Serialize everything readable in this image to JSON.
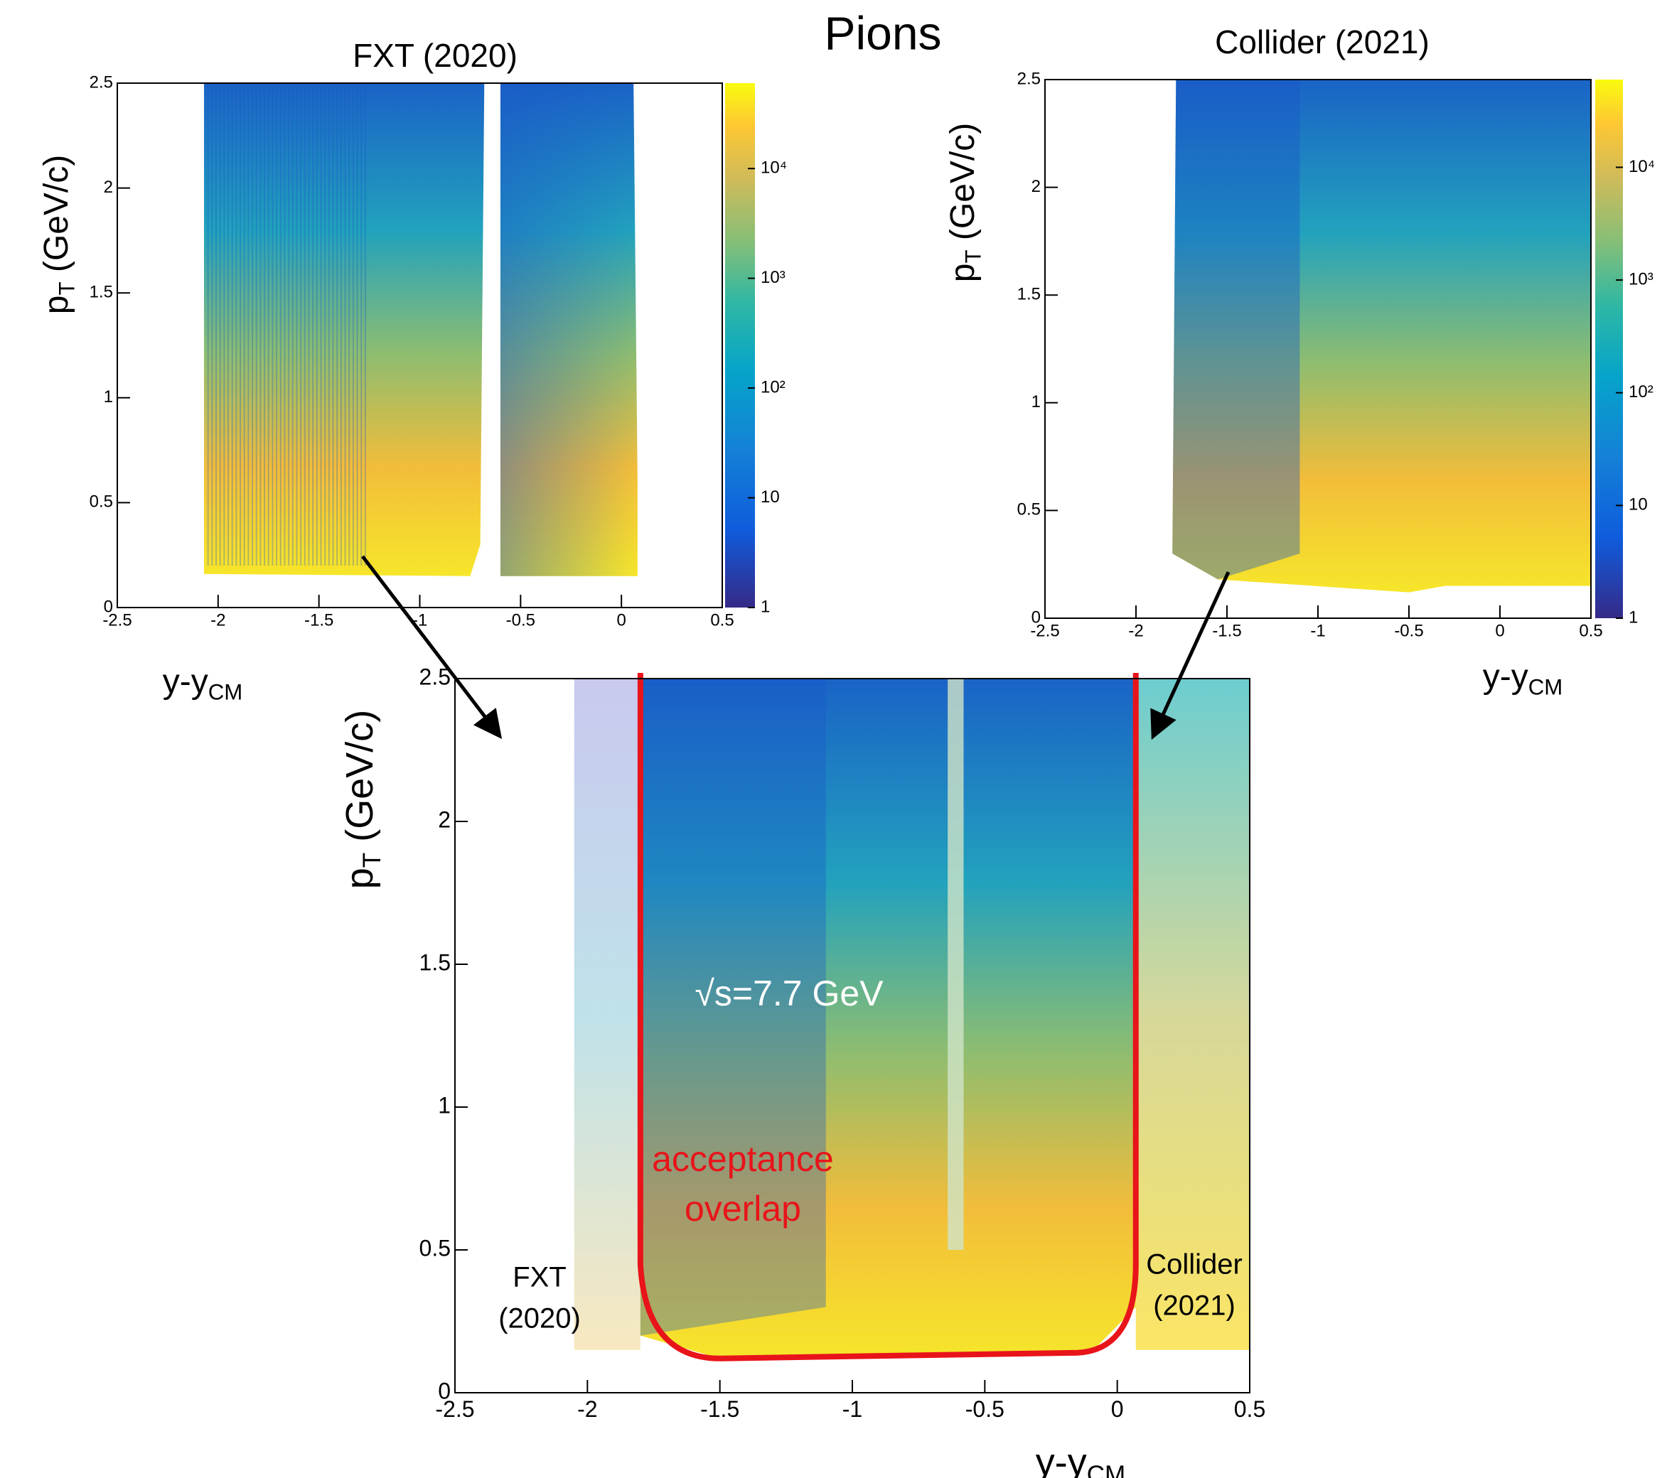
{
  "title": "Pions",
  "chart_data": [
    {
      "type": "heatmap",
      "title": "FXT (2020)",
      "xlabel": [
        "y-y",
        "CM"
      ],
      "ylabel": [
        "p",
        "T",
        " (GeV/c)"
      ],
      "xlim": [
        -2.5,
        0.5
      ],
      "ylim": [
        0,
        2.5
      ],
      "xticks": [
        -2.5,
        -2,
        -1.5,
        -1,
        -0.5,
        0,
        0.5
      ],
      "yticks": [
        0,
        0.5,
        1,
        1.5,
        2,
        2.5
      ],
      "zlog": true,
      "zlim": [
        1,
        60000
      ],
      "zticks": [
        1,
        10,
        {
          "value": 100,
          "label": "10²"
        },
        {
          "value": 1000,
          "label": "10³"
        },
        {
          "value": 10000,
          "label": "10⁴"
        }
      ]
    },
    {
      "type": "heatmap",
      "title": "Collider (2021)",
      "xlabel": [
        "y-y",
        "CM"
      ],
      "ylabel": [
        "p",
        "T",
        " (GeV/c)"
      ],
      "xlim": [
        -2.5,
        0.5
      ],
      "ylim": [
        0,
        2.5
      ],
      "xticks": [
        -2.5,
        -2,
        -1.5,
        -1,
        -0.5,
        0,
        0.5
      ],
      "yticks": [
        0,
        0.5,
        1,
        1.5,
        2,
        2.5
      ],
      "zlog": true,
      "zlim": [
        1,
        60000
      ],
      "zticks": [
        1,
        10,
        {
          "value": 100,
          "label": "10²"
        },
        {
          "value": 1000,
          "label": "10³"
        },
        {
          "value": 10000,
          "label": "10⁴"
        }
      ]
    },
    {
      "type": "heatmap",
      "xlabel": [
        "y-y",
        "CM"
      ],
      "ylabel": [
        "p",
        "T",
        " (GeV/c)"
      ],
      "xlim": [
        -2.5,
        0.5
      ],
      "ylim": [
        0,
        2.5
      ],
      "xticks": [
        -2.5,
        -2,
        -1.5,
        -1,
        -0.5,
        0,
        0.5
      ],
      "yticks": [
        0,
        0.5,
        1,
        1.5,
        2,
        2.5
      ],
      "annotations": {
        "energy": "√s=7.7 GeV",
        "overlap": [
          "acceptance",
          "overlap"
        ],
        "fxt": [
          "FXT",
          "(2020)"
        ],
        "collider": [
          "Collider",
          "(2021)"
        ]
      }
    }
  ]
}
